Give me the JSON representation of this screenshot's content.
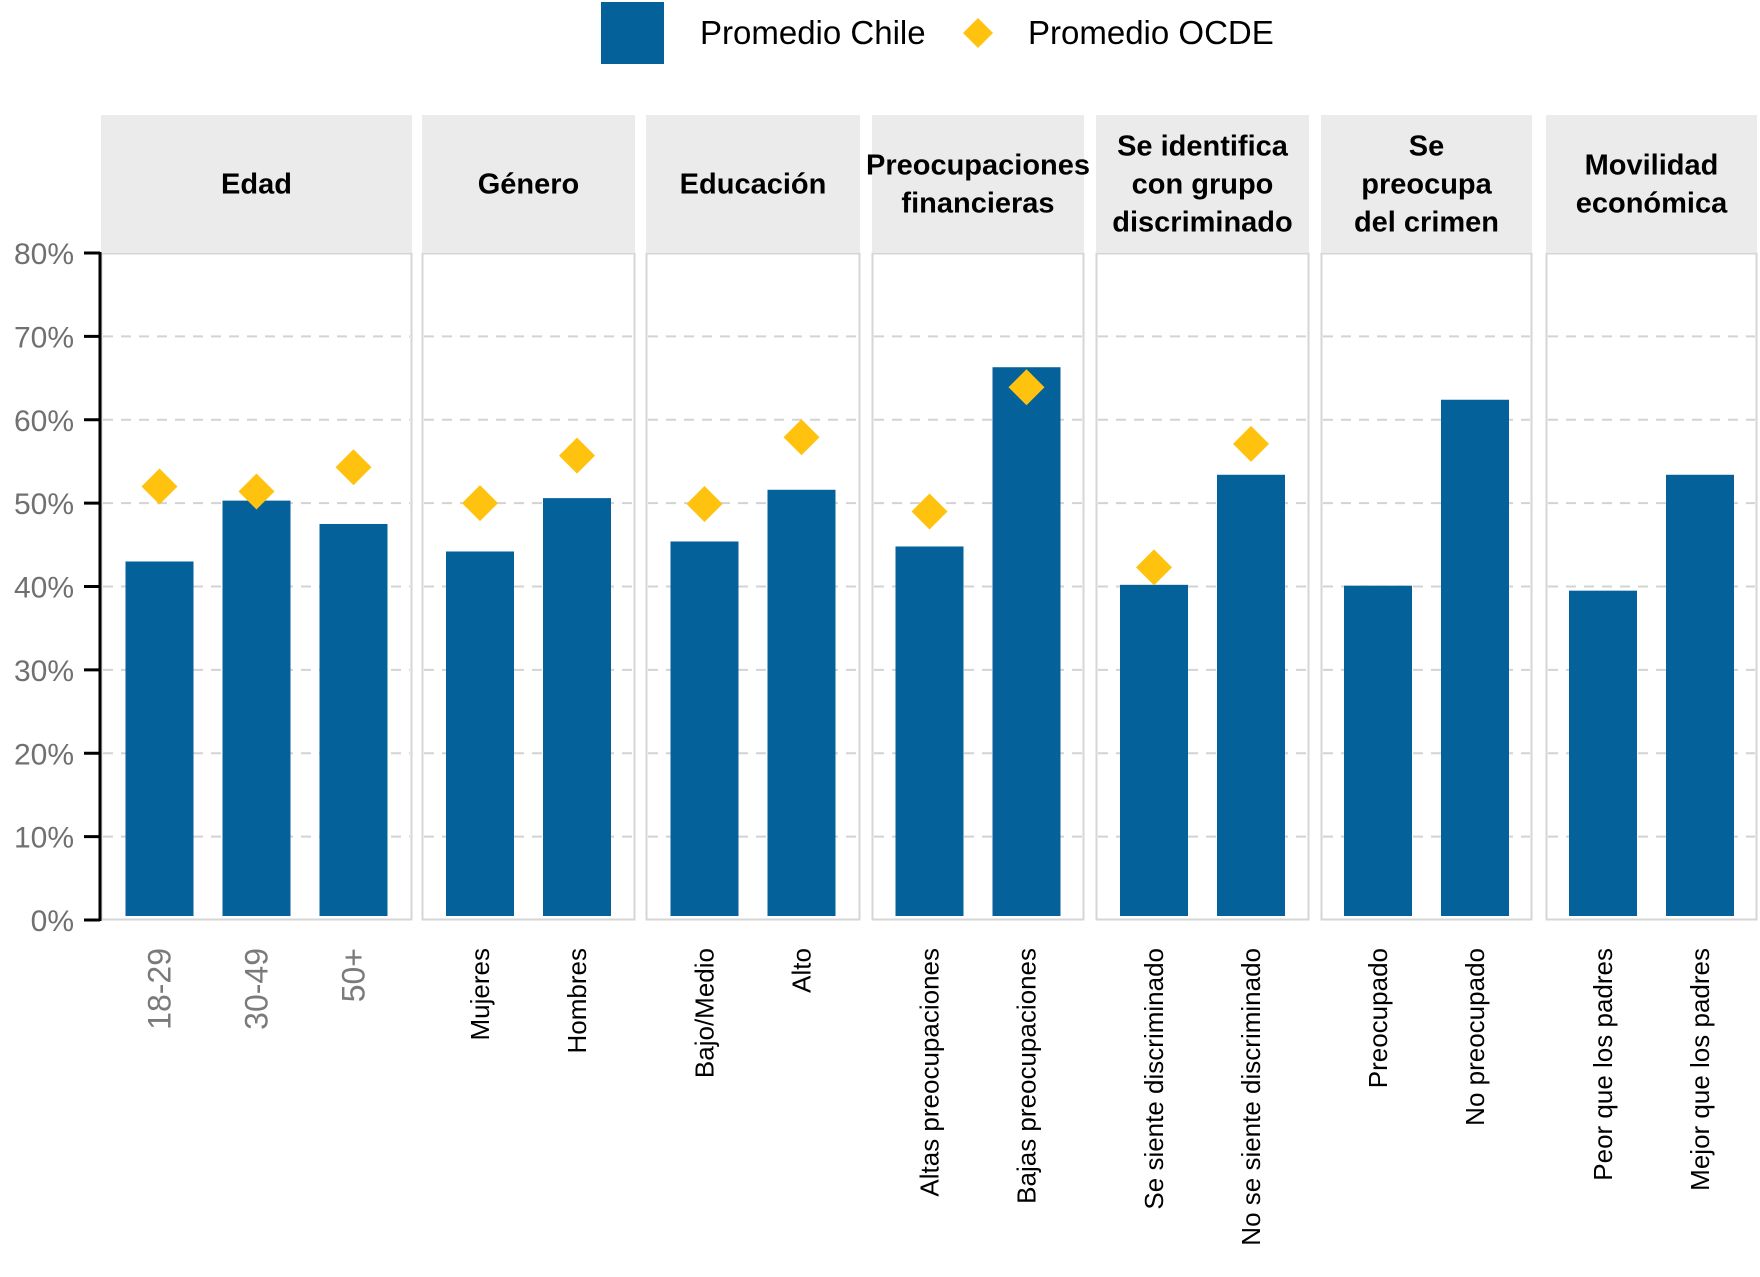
{
  "chart_data": {
    "type": "bar",
    "title": "",
    "xlabel": "",
    "ylabel": "",
    "ylim": [
      0,
      80
    ],
    "y_ticks": [
      "0%",
      "10%",
      "20%",
      "30%",
      "40%",
      "50%",
      "60%",
      "70%",
      "80%"
    ],
    "grid": true,
    "legend_position": "top-center",
    "legend": [
      {
        "name": "Promedio Chile",
        "marker": "bar",
        "color": "#05619A"
      },
      {
        "name": "Promedio OCDE",
        "marker": "diamond",
        "color": "#FFC20E"
      }
    ],
    "panels": [
      {
        "title": [
          "Edad"
        ],
        "categories": [
          "18-29",
          "30-49",
          "50+"
        ],
        "chile": [
          43.0,
          50.3,
          47.5
        ],
        "ocde": [
          52.0,
          51.4,
          54.3
        ],
        "label_style": "gray"
      },
      {
        "title": [
          "Género"
        ],
        "categories": [
          "Mujeres",
          "Hombres"
        ],
        "chile": [
          44.2,
          50.6
        ],
        "ocde": [
          50.0,
          55.7
        ]
      },
      {
        "title": [
          "Educación"
        ],
        "categories": [
          "Bajo/Medio",
          "Alto"
        ],
        "chile": [
          45.4,
          51.6
        ],
        "ocde": [
          49.9,
          57.9
        ]
      },
      {
        "title": [
          "Preocupaciones",
          "financieras"
        ],
        "categories": [
          "Altas preocupaciones",
          "Bajas preocupaciones"
        ],
        "chile": [
          44.8,
          66.3
        ],
        "ocde": [
          49.0,
          63.9
        ]
      },
      {
        "title": [
          "Se identifica",
          "con grupo",
          "discriminado"
        ],
        "categories": [
          "Se siente discriminado",
          "No se siente discriminado"
        ],
        "chile": [
          40.2,
          53.4
        ],
        "ocde": [
          42.3,
          57.1
        ]
      },
      {
        "title": [
          "Se",
          "preocupa",
          "del crimen"
        ],
        "categories": [
          "Preocupado",
          "No preocupado"
        ],
        "chile": [
          40.1,
          62.4
        ],
        "ocde": [
          null,
          null
        ]
      },
      {
        "title": [
          "Movilidad",
          "económica"
        ],
        "categories": [
          "Peor que los padres",
          "Mejor que los padres"
        ],
        "chile": [
          39.5,
          53.4
        ],
        "ocde": [
          null,
          null
        ]
      }
    ]
  }
}
